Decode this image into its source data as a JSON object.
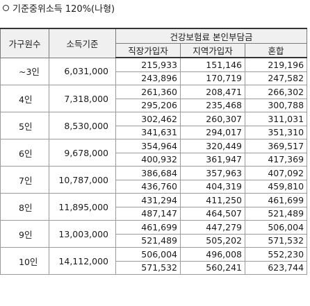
{
  "title": "기준중위소득 120%(나형)",
  "headers": {
    "household": "가구원수",
    "income": "소득기준",
    "premium_group": "건강보험료 본인부담금",
    "employee": "직장가입자",
    "regional": "지역가입자",
    "mixed": "혼합"
  },
  "rows": [
    {
      "size": "~3인",
      "income": "6,031,000",
      "lines": [
        [
          "215,933",
          "151,146",
          "219,196"
        ],
        [
          "243,896",
          "170,719",
          "247,582"
        ]
      ]
    },
    {
      "size": "4인",
      "income": "7,318,000",
      "lines": [
        [
          "261,360",
          "208,471",
          "266,302"
        ],
        [
          "295,206",
          "235,468",
          "300,788"
        ]
      ]
    },
    {
      "size": "5인",
      "income": "8,530,000",
      "lines": [
        [
          "302,462",
          "260,307",
          "311,031"
        ],
        [
          "341,631",
          "294,017",
          "351,310"
        ]
      ]
    },
    {
      "size": "6인",
      "income": "9,678,000",
      "lines": [
        [
          "354,964",
          "320,449",
          "369,517"
        ],
        [
          "400,932",
          "361,947",
          "417,369"
        ]
      ]
    },
    {
      "size": "7인",
      "income": "10,787,000",
      "lines": [
        [
          "386,684",
          "357,963",
          "407,092"
        ],
        [
          "436,760",
          "404,319",
          "459,810"
        ]
      ]
    },
    {
      "size": "8인",
      "income": "11,895,000",
      "lines": [
        [
          "431,294",
          "411,250",
          "461,699"
        ],
        [
          "487,147",
          "464,507",
          "521,489"
        ]
      ]
    },
    {
      "size": "9인",
      "income": "13,003,000",
      "lines": [
        [
          "461,699",
          "447,279",
          "506,004"
        ],
        [
          "521,489",
          "505,202",
          "571,532"
        ]
      ]
    },
    {
      "size": "10인",
      "income": "14,112,000",
      "lines": [
        [
          "506,004",
          "496,008",
          "552,230"
        ],
        [
          "571,532",
          "560,241",
          "623,744"
        ]
      ]
    }
  ]
}
